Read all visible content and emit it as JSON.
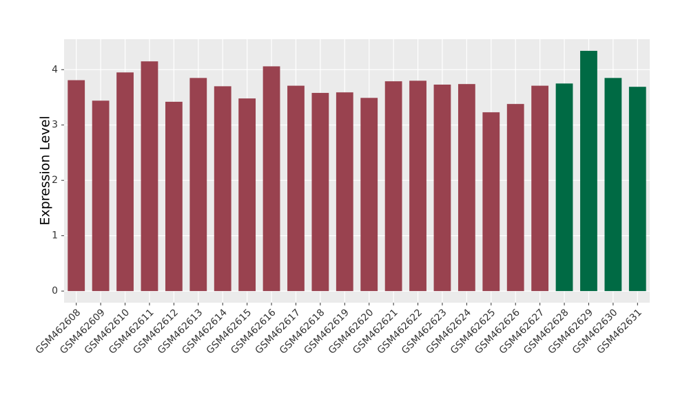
{
  "chart_data": {
    "type": "bar",
    "y_label": "Expression Level",
    "categories": [
      "GSM462608",
      "GSM462609",
      "GSM462610",
      "GSM462611",
      "GSM462612",
      "GSM462613",
      "GSM462614",
      "GSM462615",
      "GSM462616",
      "GSM462617",
      "GSM462618",
      "GSM462619",
      "GSM462620",
      "GSM462621",
      "GSM462622",
      "GSM462623",
      "GSM462624",
      "GSM462625",
      "GSM462626",
      "GSM462627",
      "GSM462628",
      "GSM462629",
      "GSM462630",
      "GSM462631"
    ],
    "values": [
      3.81,
      3.44,
      3.95,
      4.15,
      3.42,
      3.85,
      3.7,
      3.48,
      4.06,
      3.71,
      3.58,
      3.59,
      3.49,
      3.79,
      3.8,
      3.73,
      3.74,
      3.23,
      3.38,
      3.71,
      3.75,
      4.34,
      3.85,
      3.69
    ],
    "colors": [
      "#99424f",
      "#99424f",
      "#99424f",
      "#99424f",
      "#99424f",
      "#99424f",
      "#99424f",
      "#99424f",
      "#99424f",
      "#99424f",
      "#99424f",
      "#99424f",
      "#99424f",
      "#99424f",
      "#99424f",
      "#99424f",
      "#99424f",
      "#99424f",
      "#99424f",
      "#99424f",
      "#006a44",
      "#006a44",
      "#006a44",
      "#006a44"
    ],
    "ylim": [
      -0.21,
      4.55
    ],
    "yticks": [
      0,
      1,
      2,
      3,
      4
    ],
    "grid": true
  }
}
